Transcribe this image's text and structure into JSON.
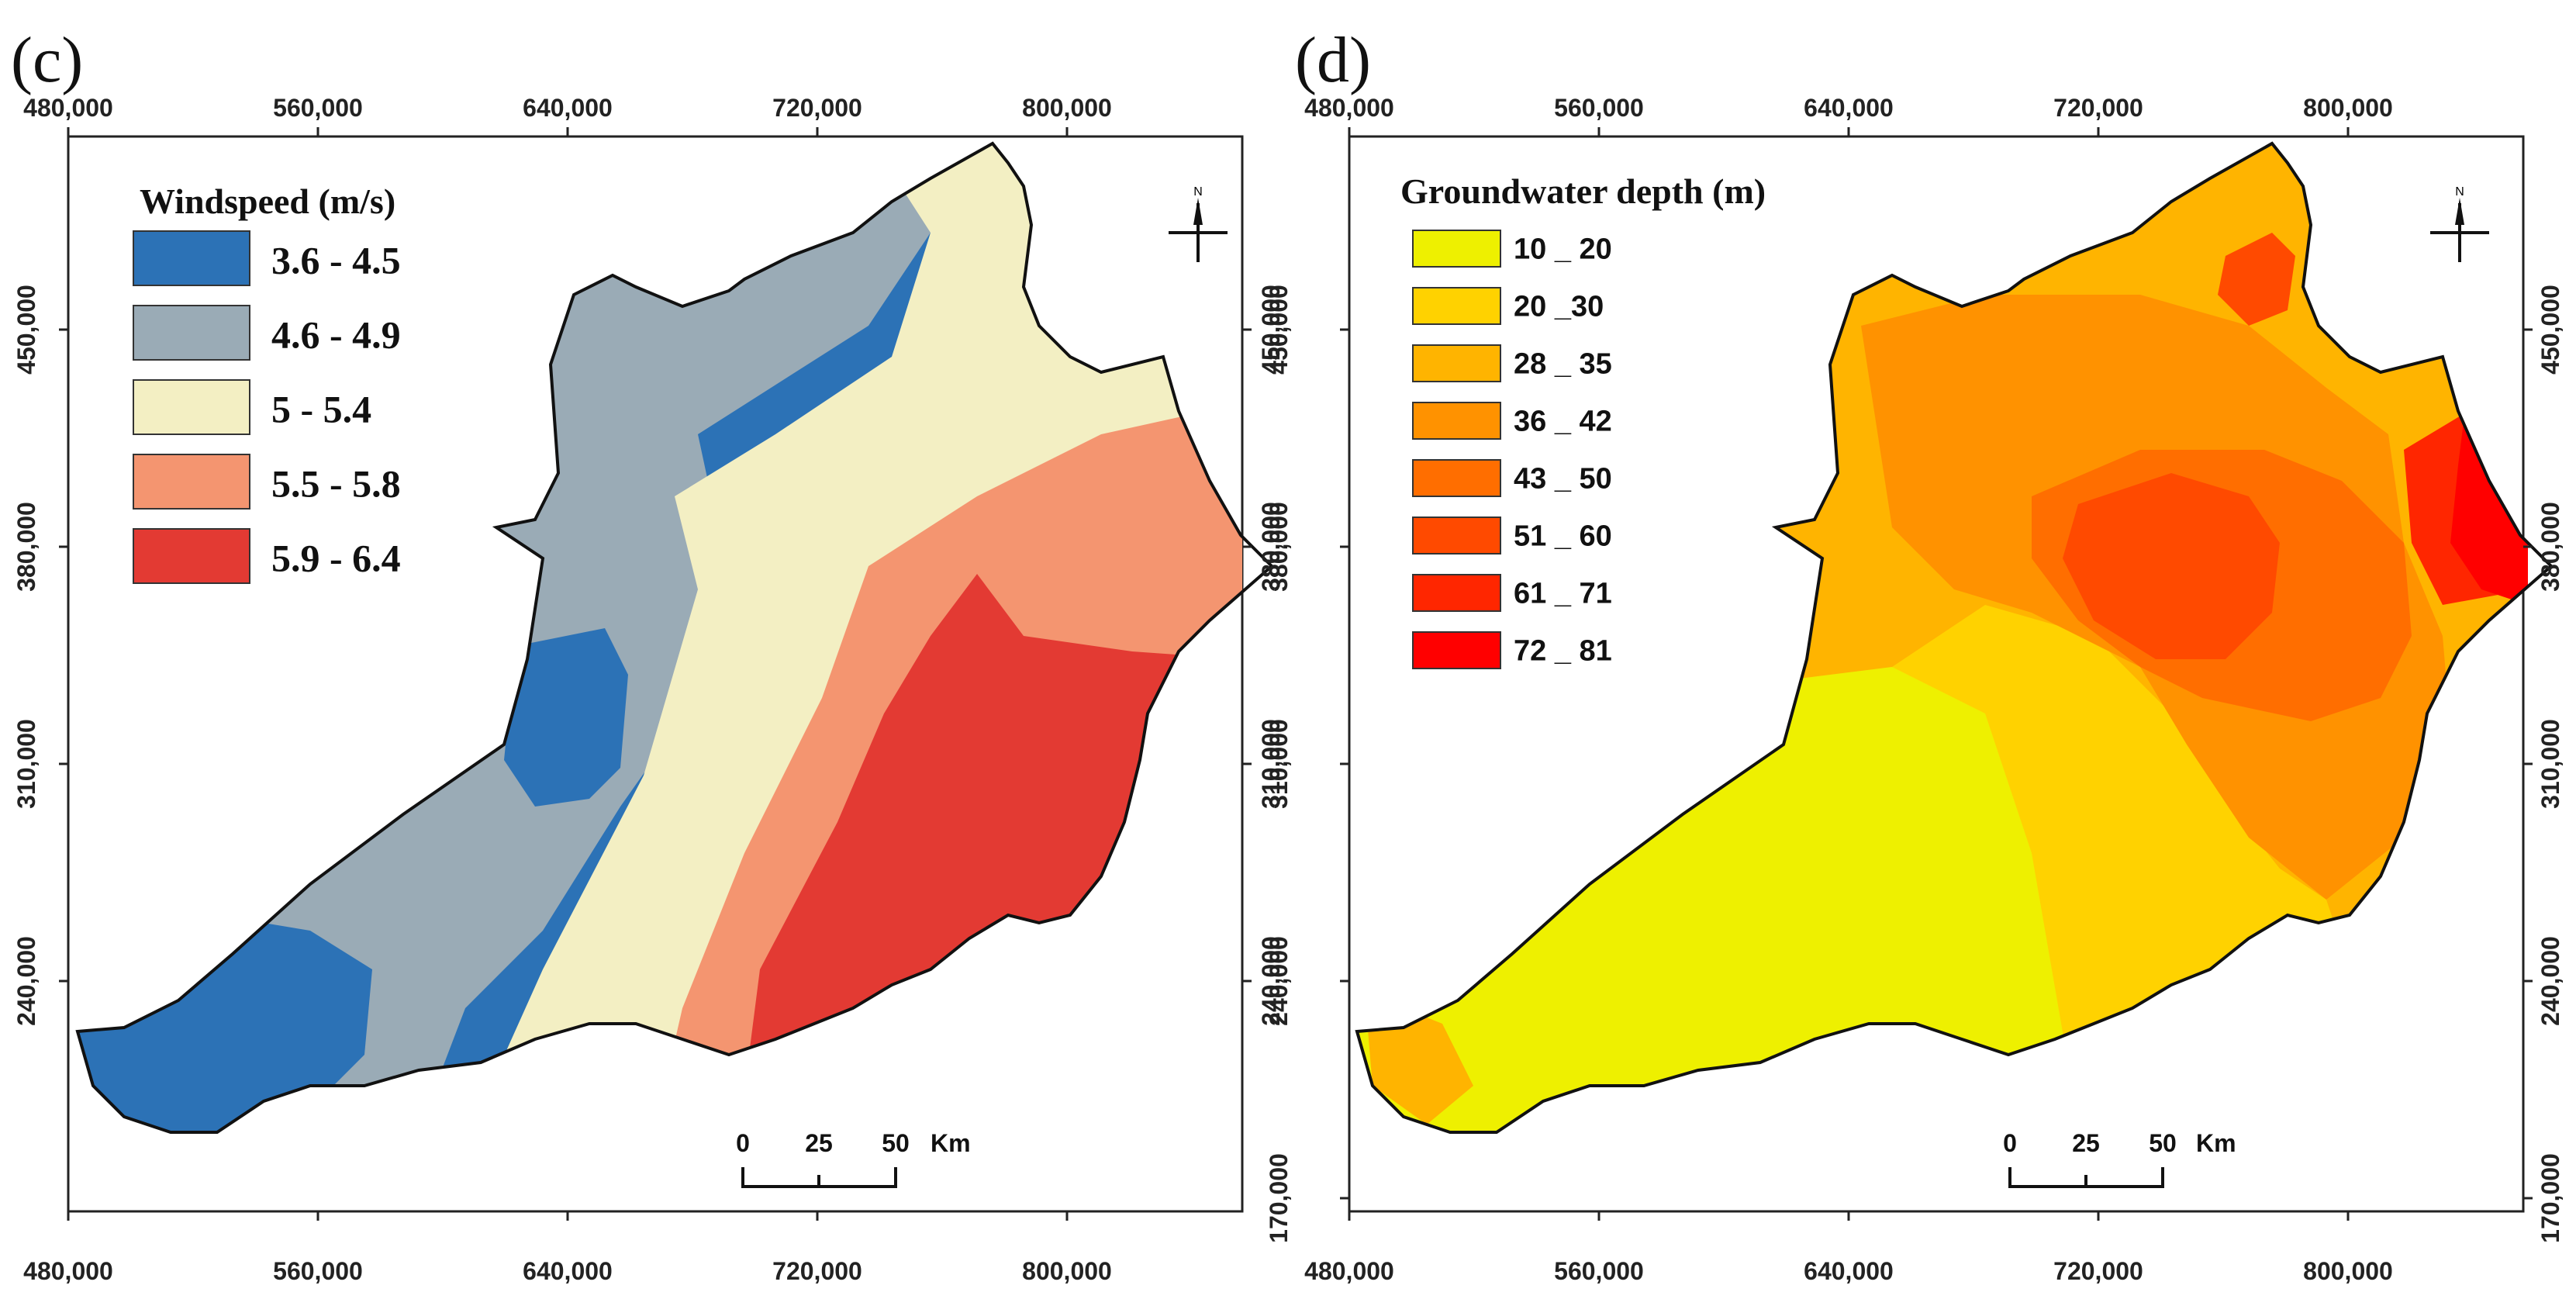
{
  "panels": [
    {
      "id": "c",
      "label": "(c)",
      "legend": {
        "title": "Windspeed  (m/s)",
        "classes": [
          {
            "label": "3.6 - 4.5",
            "color": "#2c72b6"
          },
          {
            "label": "4.6 - 4.9",
            "color": "#9aabb6"
          },
          {
            "label": "5 - 5.4",
            "color": "#f3efc3"
          },
          {
            "label": "5.5 - 5.8",
            "color": "#f49570"
          },
          {
            "label": "5.9 - 6.4",
            "color": "#e33a33"
          }
        ]
      },
      "x_ticks": [
        "480,000",
        "560,000",
        "640,000",
        "720,000",
        "800,000"
      ],
      "y_ticks": [
        "450,000",
        "380,000",
        "310,000",
        "240,000"
      ],
      "scale_bar": {
        "labels": [
          "0",
          "25",
          "50"
        ],
        "unit": "Km"
      }
    },
    {
      "id": "d",
      "label": "(d)",
      "legend": {
        "title": "Groundwater depth (m)",
        "classes": [
          {
            "label": "10 _ 20",
            "color": "#eef000"
          },
          {
            "label": "20 _30",
            "color": "#ffd200"
          },
          {
            "label": "28 _ 35",
            "color": "#ffb400"
          },
          {
            "label": "36 _ 42",
            "color": "#ff9200"
          },
          {
            "label": "43 _ 50",
            "color": "#ff6e00"
          },
          {
            "label": "51 _ 60",
            "color": "#ff4a00"
          },
          {
            "label": "61 _ 71",
            "color": "#ff2600"
          },
          {
            "label": "72 _ 81",
            "color": "#ff0000"
          }
        ]
      },
      "x_ticks": [
        "480,000",
        "560,000",
        "640,000",
        "720,000",
        "800,000"
      ],
      "y_ticks": [
        "450,000",
        "380,000",
        "310,000",
        "240,000",
        "170,000"
      ],
      "scale_bar": {
        "labels": [
          "0",
          "25",
          "50"
        ],
        "unit": "Km"
      }
    }
  ]
}
